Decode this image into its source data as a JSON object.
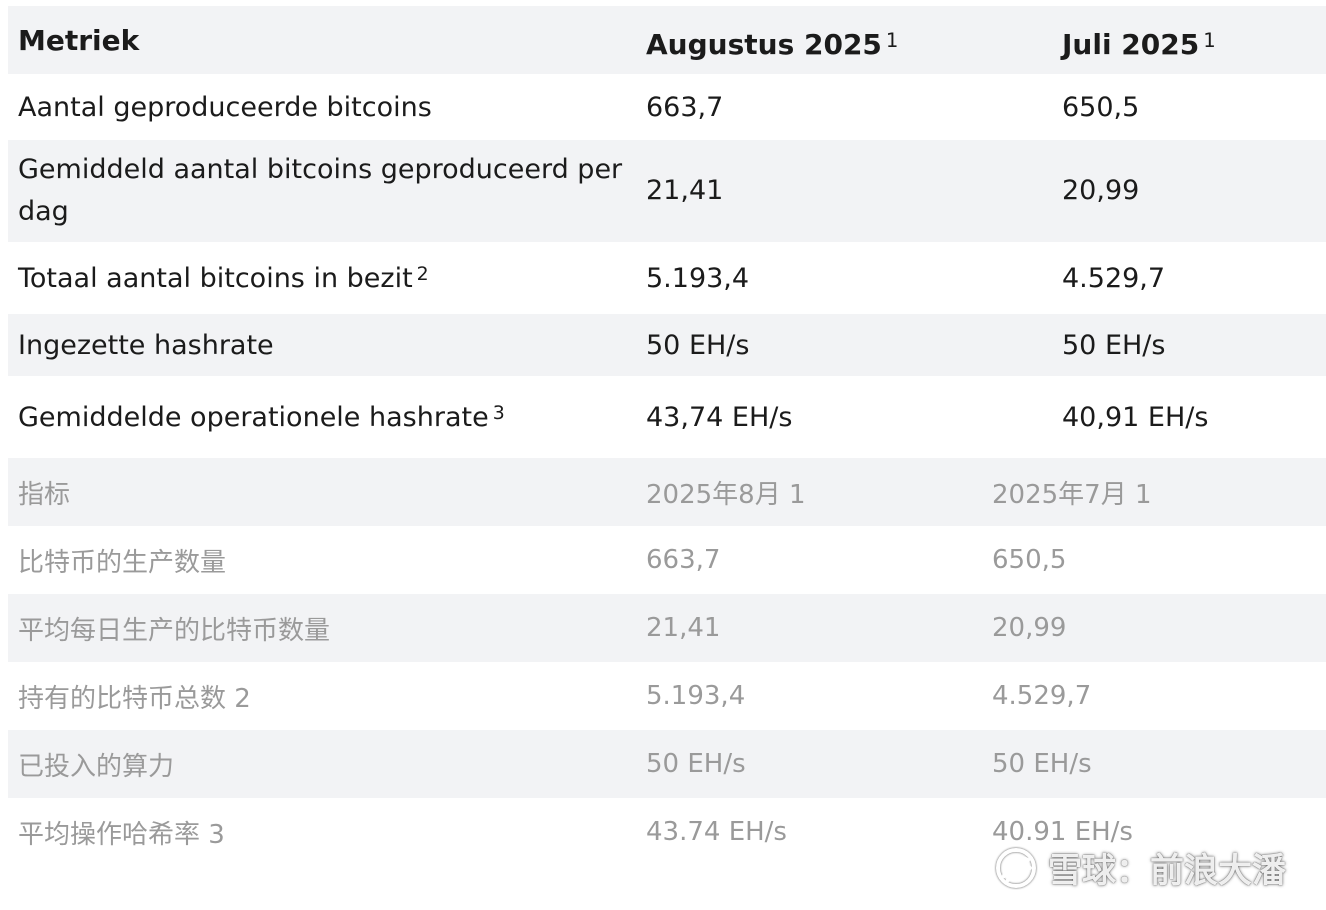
{
  "table_nl": {
    "headers": [
      "Metriek",
      "Augustus 2025",
      "Juli 2025"
    ],
    "header_sups": [
      "",
      "1",
      "1"
    ],
    "rows": [
      {
        "metric": "Aantal geproduceerde bitcoins",
        "sup": "",
        "aug": "663,7",
        "jul": "650,5"
      },
      {
        "metric": "Gemiddeld aantal bitcoins geproduceerd per dag",
        "sup": "",
        "aug": "21,41",
        "jul": "20,99"
      },
      {
        "metric": "Totaal aantal bitcoins in bezit",
        "sup": "2",
        "aug": "5.193,4",
        "jul": "4.529,7"
      },
      {
        "metric": "Ingezette hashrate",
        "sup": "",
        "aug": "50 EH/s",
        "jul": "50 EH/s"
      },
      {
        "metric": "Gemiddelde operationele hashrate",
        "sup": "3",
        "aug": "43,74 EH/s",
        "jul": "40,91 EH/s"
      }
    ]
  },
  "table_zh": {
    "headers": [
      "指标",
      "2025年8月 1",
      "2025年7月 1"
    ],
    "rows": [
      {
        "metric": "比特币的生产数量",
        "aug": "663,7",
        "jul": "650,5"
      },
      {
        "metric": "平均每日生产的比特币数量",
        "aug": "21,41",
        "jul": "20,99"
      },
      {
        "metric": "持有的比特币总数 2",
        "aug": "5.193,4",
        "jul": "4.529,7"
      },
      {
        "metric": "已投入的算力",
        "aug": "50 EH/s",
        "jul": "50 EH/s"
      },
      {
        "metric": "平均操作哈希率 3",
        "aug": "43.74 EH/s",
        "jul": "40.91 EH/s"
      }
    ]
  },
  "watermark": {
    "icon": "snowball-logo-icon",
    "text": "雪球：前浪大潘"
  }
}
